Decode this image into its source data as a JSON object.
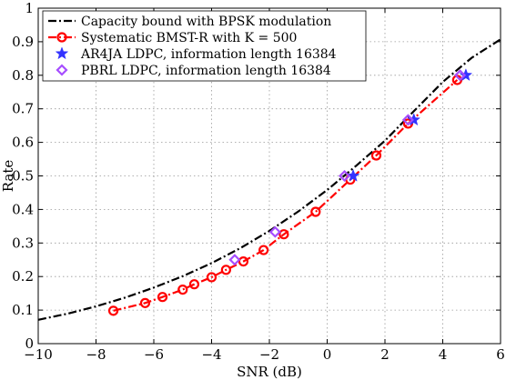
{
  "chart_data": {
    "type": "line",
    "xlabel": "SNR (dB)",
    "ylabel": "Rate",
    "xlim": [
      -10,
      6
    ],
    "ylim": [
      0,
      1
    ],
    "xticks": [
      "−10",
      "−8",
      "−6",
      "−4",
      "−2",
      "0",
      "2",
      "4",
      "6"
    ],
    "xtick_values": [
      -10,
      -8,
      -6,
      -4,
      -2,
      0,
      2,
      4,
      6
    ],
    "yticks": [
      "0",
      "0.1",
      "0.2",
      "0.3",
      "0.4",
      "0.5",
      "0.6",
      "0.7",
      "0.8",
      "0.9",
      "1"
    ],
    "ytick_values": [
      0,
      0.1,
      0.2,
      0.3,
      0.4,
      0.5,
      0.6,
      0.7,
      0.8,
      0.9,
      1.0
    ],
    "grid": true,
    "legend_position": "top-left",
    "series": [
      {
        "name": "Capacity bound with BPSK modulation",
        "style": "dash-dot",
        "color": "#000000",
        "marker": "none",
        "x": [
          -10,
          -9,
          -8,
          -7,
          -6,
          -5,
          -4,
          -3,
          -2,
          -1,
          0,
          1,
          2,
          3,
          4,
          5,
          6
        ],
        "y": [
          0.071,
          0.089,
          0.111,
          0.137,
          0.167,
          0.201,
          0.24,
          0.285,
          0.336,
          0.394,
          0.458,
          0.53,
          0.605,
          0.693,
          0.78,
          0.852,
          0.907
        ]
      },
      {
        "name": "Systematic BMST-R with K = 500",
        "style": "dash-dot",
        "color": "#ff0000",
        "marker": "circle",
        "x": [
          -7.4,
          -6.3,
          -5.7,
          -5.0,
          -4.6,
          -4.0,
          -3.5,
          -2.9,
          -2.2,
          -1.5,
          -0.4,
          0.8,
          1.7,
          2.8,
          4.5
        ],
        "y": [
          0.098,
          0.121,
          0.139,
          0.161,
          0.177,
          0.198,
          0.22,
          0.245,
          0.279,
          0.326,
          0.393,
          0.489,
          0.561,
          0.656,
          0.786
        ]
      },
      {
        "name": "AR4JA LDPC, information length 16384",
        "style": "none",
        "color": "#3333ff",
        "marker": "star",
        "x": [
          0.9,
          3.0,
          4.8
        ],
        "y": [
          0.5,
          0.667,
          0.8
        ]
      },
      {
        "name": "PBRL LDPC, information length 16384",
        "style": "none",
        "color": "#a64dff",
        "marker": "diamond",
        "x": [
          -3.2,
          -1.8,
          0.6,
          2.8,
          4.6
        ],
        "y": [
          0.25,
          0.333,
          0.5,
          0.667,
          0.8
        ]
      }
    ]
  }
}
